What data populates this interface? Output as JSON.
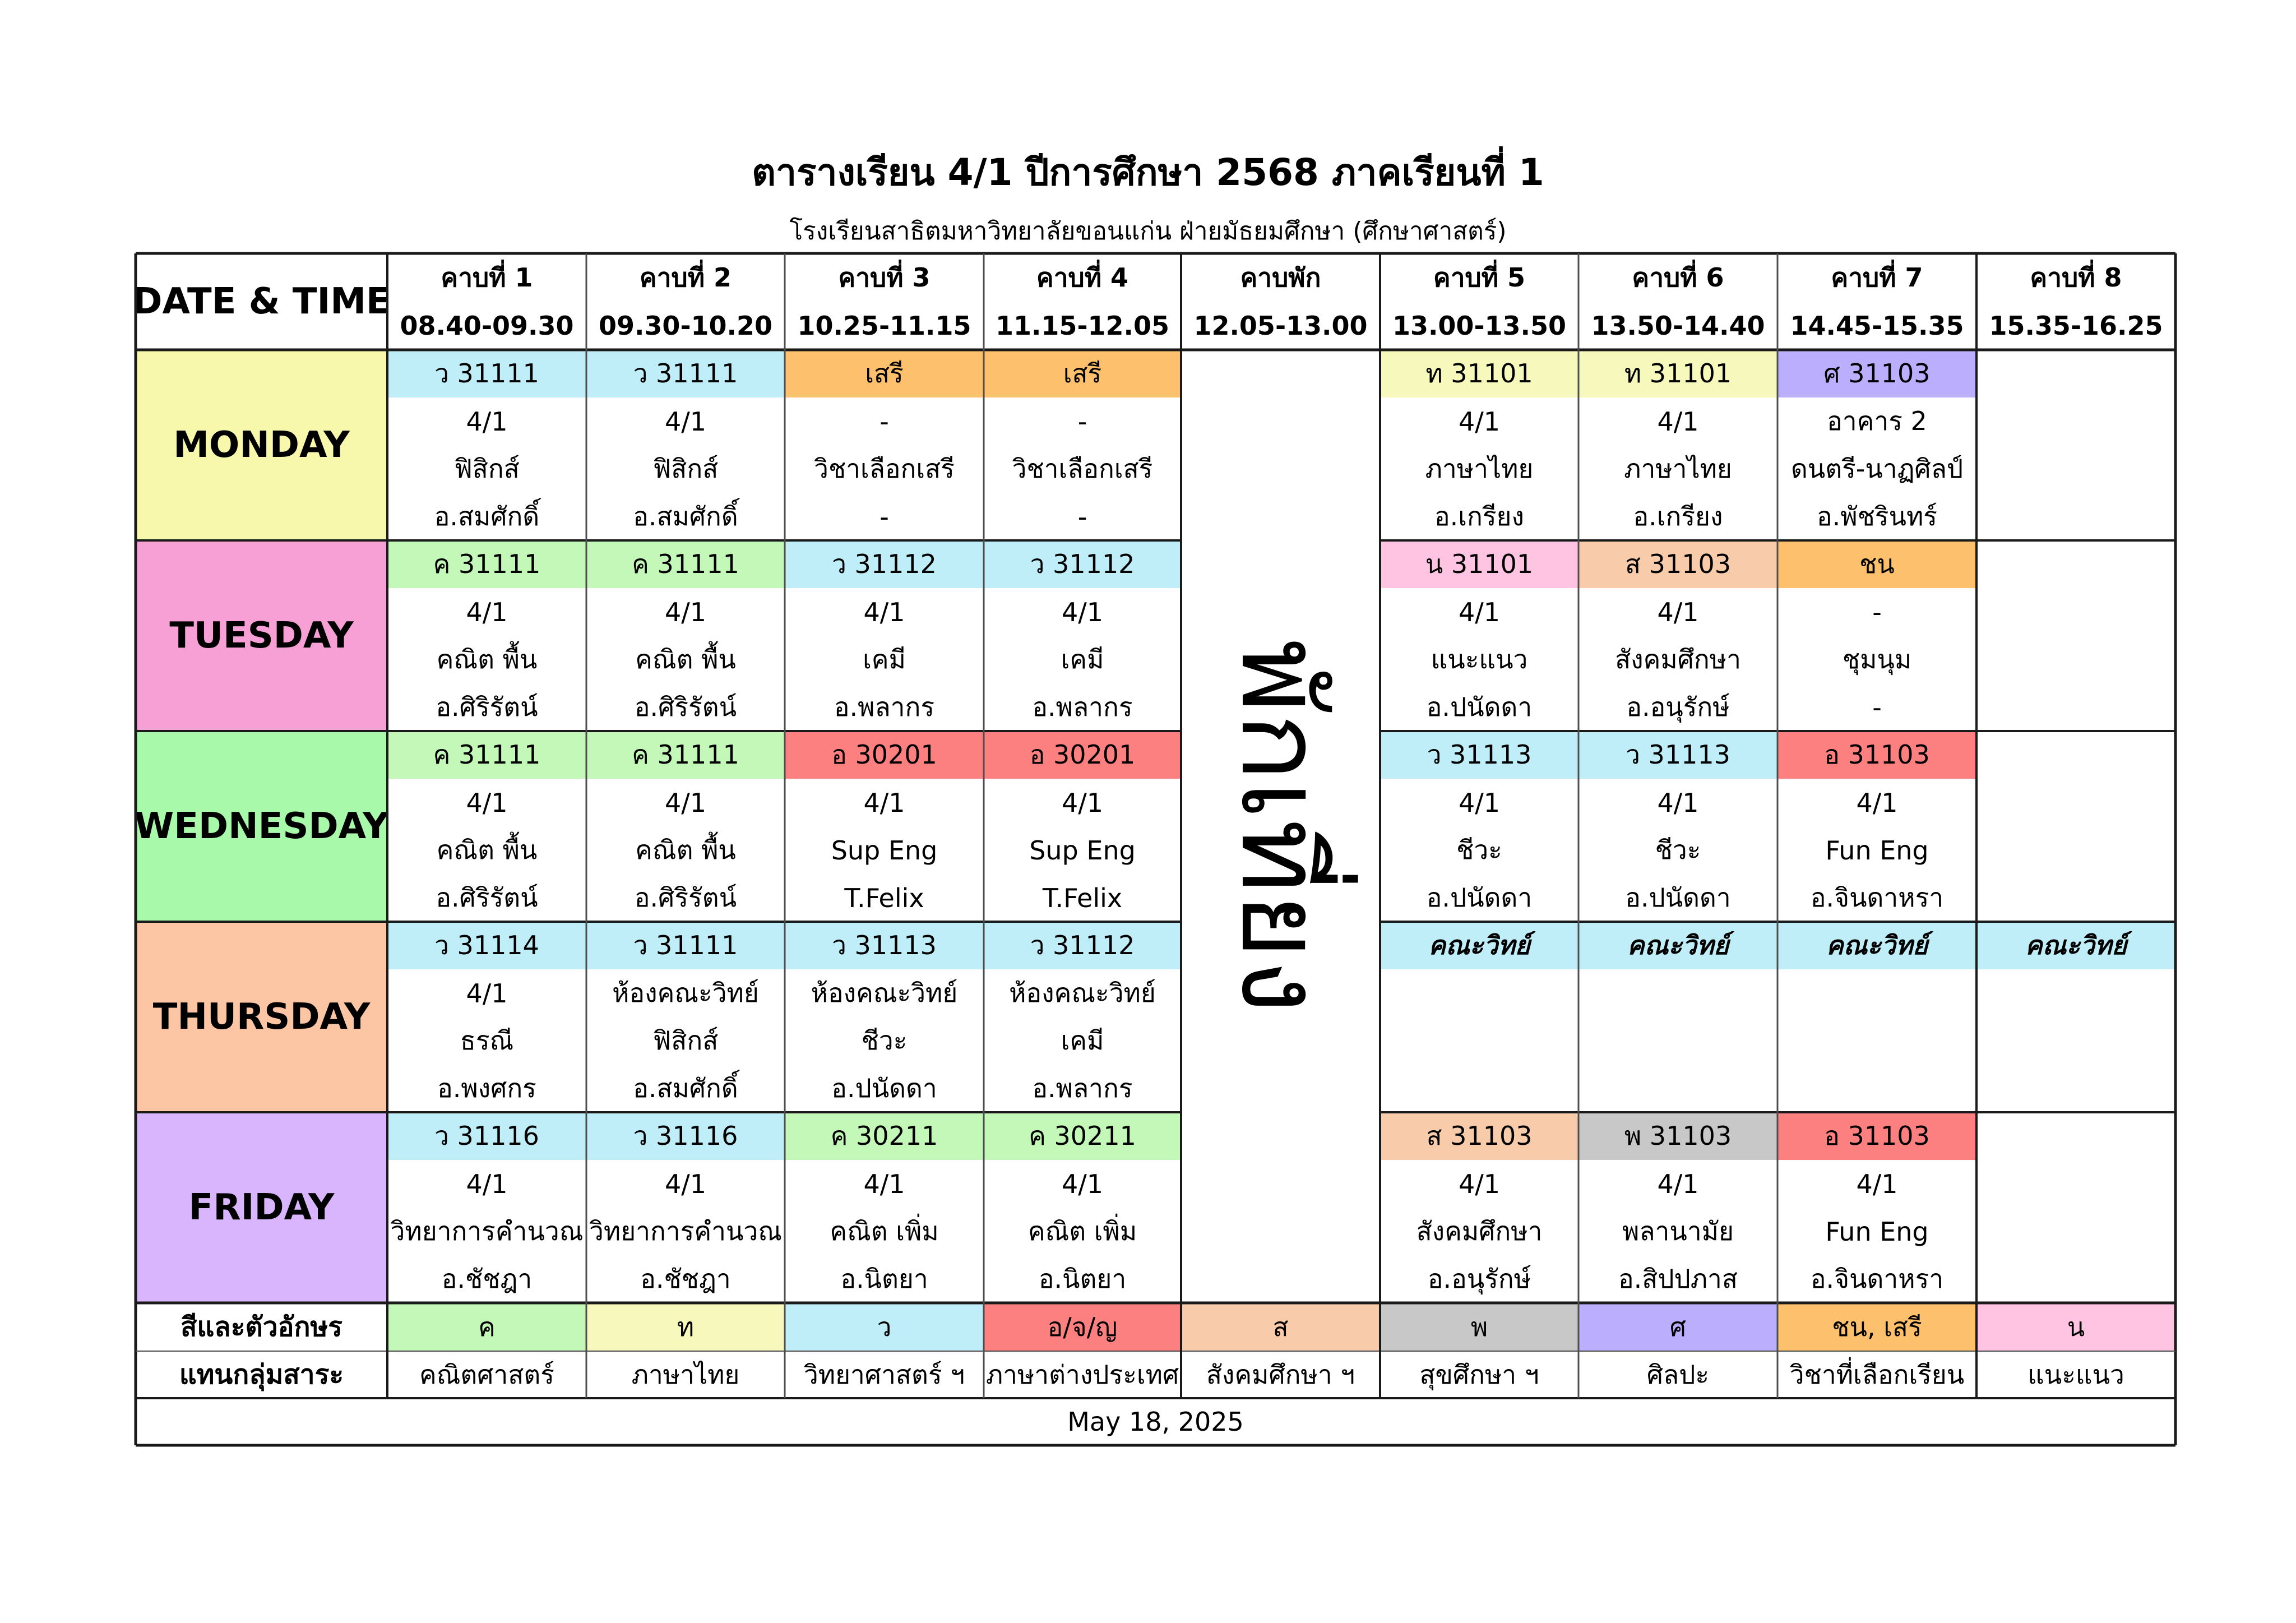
{
  "title": "ตารางเรียน 4/1 ปีการศึกษา 2568 ภาคเรียนที่ 1",
  "subtitle": "โรงเรียนสาธิตมหาวิทยาลัยขอนแก่น ฝ่ายมัธยมศึกษา (ศึกษาศาสตร์)",
  "header": {
    "date_time": "DATE & TIME",
    "periods": [
      {
        "label": "คาบที่ 1",
        "time": "08.40-09.30"
      },
      {
        "label": "คาบที่ 2",
        "time": "09.30-10.20"
      },
      {
        "label": "คาบที่ 3",
        "time": "10.25-11.15"
      },
      {
        "label": "คาบที่ 4",
        "time": "11.15-12.05"
      },
      {
        "label": "คาบพัก",
        "time": "12.05-13.00"
      },
      {
        "label": "คาบที่ 5",
        "time": "13.00-13.50"
      },
      {
        "label": "คาบที่ 6",
        "time": "13.50-14.40"
      },
      {
        "label": "คาบที่ 7",
        "time": "14.45-15.35"
      },
      {
        "label": "คาบที่ 8",
        "time": "15.35-16.25"
      }
    ]
  },
  "lunch_label": "พักเที่ยง",
  "days": [
    {
      "name": "MONDAY",
      "color": "#f8f8ac",
      "slots": [
        {
          "code": "ว 31111",
          "color": "#bfeef9",
          "lines": [
            "4/1",
            "ฟิสิกส์",
            "อ.สมศักดิ์"
          ]
        },
        {
          "code": "ว 31111",
          "color": "#bfeef9",
          "lines": [
            "4/1",
            "ฟิสิกส์",
            "อ.สมศักดิ์"
          ]
        },
        {
          "code": "เสรี",
          "color": "#fdc06c",
          "lines": [
            "-",
            "วิชาเลือกเสรี",
            "-"
          ]
        },
        {
          "code": "เสรี",
          "color": "#fdc06c",
          "lines": [
            "-",
            "วิชาเลือกเสรี",
            "-"
          ]
        },
        {
          "code": "ท 31101",
          "color": "#f6f8bc",
          "lines": [
            "4/1",
            "ภาษาไทย",
            "อ.เกรียง"
          ]
        },
        {
          "code": "ท 31101",
          "color": "#f6f8bc",
          "lines": [
            "4/1",
            "ภาษาไทย",
            "อ.เกรียง"
          ]
        },
        {
          "code": "ศ 31103",
          "color": "#bbaefc",
          "lines": [
            "อาคาร 2",
            "ดนตรี-นาฏศิลป์",
            "อ.พัชรินทร์"
          ]
        },
        {
          "code": "",
          "color": "#ffffff",
          "lines": [
            "",
            "",
            ""
          ]
        }
      ]
    },
    {
      "name": "TUESDAY",
      "color": "#f6a0d6",
      "slots": [
        {
          "code": "ค 31111",
          "color": "#c3f8b8",
          "lines": [
            "4/1",
            "คณิต พื้น",
            "อ.ศิริรัตน์"
          ]
        },
        {
          "code": "ค 31111",
          "color": "#c3f8b8",
          "lines": [
            "4/1",
            "คณิต พื้น",
            "อ.ศิริรัตน์"
          ]
        },
        {
          "code": "ว 31112",
          "color": "#bfeef9",
          "lines": [
            "4/1",
            "เคมี",
            "อ.พลากร"
          ]
        },
        {
          "code": "ว 31112",
          "color": "#bfeef9",
          "lines": [
            "4/1",
            "เคมี",
            "อ.พลากร"
          ]
        },
        {
          "code": "น 31101",
          "color": "#fec4e2",
          "lines": [
            "4/1",
            "แนะแนว",
            "อ.ปนัดดา"
          ]
        },
        {
          "code": "ส 31103",
          "color": "#f8cbaa",
          "lines": [
            "4/1",
            "สังคมศึกษา",
            "อ.อนุรักษ์"
          ]
        },
        {
          "code": "ชน",
          "color": "#fdc06c",
          "lines": [
            "-",
            "ชุมนุม",
            "-"
          ]
        },
        {
          "code": "",
          "color": "#ffffff",
          "lines": [
            "",
            "",
            ""
          ]
        }
      ]
    },
    {
      "name": "WEDNESDAY",
      "color": "#a9f9aa",
      "slots": [
        {
          "code": "ค 31111",
          "color": "#c3f8b8",
          "lines": [
            "4/1",
            "คณิต พื้น",
            "อ.ศิริรัตน์"
          ]
        },
        {
          "code": "ค 31111",
          "color": "#c3f8b8",
          "lines": [
            "4/1",
            "คณิต พื้น",
            "อ.ศิริรัตน์"
          ]
        },
        {
          "code": "อ 30201",
          "color": "#fd8080",
          "lines": [
            "4/1",
            "Sup Eng",
            "T.Felix"
          ]
        },
        {
          "code": "อ 30201",
          "color": "#fd8080",
          "lines": [
            "4/1",
            "Sup Eng",
            "T.Felix"
          ]
        },
        {
          "code": "ว 31113",
          "color": "#bfeef9",
          "lines": [
            "4/1",
            "ชีวะ",
            "อ.ปนัดดา"
          ]
        },
        {
          "code": "ว 31113",
          "color": "#bfeef9",
          "lines": [
            "4/1",
            "ชีวะ",
            "อ.ปนัดดา"
          ]
        },
        {
          "code": "อ 31103",
          "color": "#fd8080",
          "lines": [
            "4/1",
            "Fun Eng",
            "อ.จินดาหรา"
          ]
        },
        {
          "code": "",
          "color": "#ffffff",
          "lines": [
            "",
            "",
            ""
          ]
        }
      ]
    },
    {
      "name": "THURSDAY",
      "color": "#fcc6a4",
      "slots": [
        {
          "code": "ว 31114",
          "color": "#bfeef9",
          "lines": [
            "4/1",
            "ธรณี",
            "อ.พงศกร"
          ]
        },
        {
          "code": "ว 31111",
          "color": "#bfeef9",
          "lines": [
            "ห้องคณะวิทย์",
            "ฟิสิกส์",
            "อ.สมศักดิ์"
          ]
        },
        {
          "code": "ว 31113",
          "color": "#bfeef9",
          "lines": [
            "ห้องคณะวิทย์",
            "ชีวะ",
            "อ.ปนัดดา"
          ]
        },
        {
          "code": "ว 31112",
          "color": "#bfeef9",
          "lines": [
            "ห้องคณะวิทย์",
            "เคมี",
            "อ.พลากร"
          ]
        },
        {
          "code": "คณะวิทย์",
          "color": "#bfeef9",
          "italic": true,
          "lines": [
            "",
            "",
            ""
          ]
        },
        {
          "code": "คณะวิทย์",
          "color": "#bfeef9",
          "italic": true,
          "lines": [
            "",
            "",
            ""
          ]
        },
        {
          "code": "คณะวิทย์",
          "color": "#bfeef9",
          "italic": true,
          "lines": [
            "",
            "",
            ""
          ]
        },
        {
          "code": "คณะวิทย์",
          "color": "#bfeef9",
          "italic": true,
          "lines": [
            "",
            "",
            ""
          ]
        }
      ]
    },
    {
      "name": "FRIDAY",
      "color": "#d8b5fc",
      "slots": [
        {
          "code": "ว 31116",
          "color": "#bfeef9",
          "lines": [
            "4/1",
            "วิทยาการคำนวณ",
            "อ.ชัชฎา"
          ]
        },
        {
          "code": "ว 31116",
          "color": "#bfeef9",
          "lines": [
            "4/1",
            "วิทยาการคำนวณ",
            "อ.ชัชฎา"
          ]
        },
        {
          "code": "ค 30211",
          "color": "#c3f8b8",
          "lines": [
            "4/1",
            "คณิต เพิ่ม",
            "อ.นิตยา"
          ]
        },
        {
          "code": "ค 30211",
          "color": "#c3f8b8",
          "lines": [
            "4/1",
            "คณิต เพิ่ม",
            "อ.นิตยา"
          ]
        },
        {
          "code": "ส 31103",
          "color": "#f8cbaa",
          "lines": [
            "4/1",
            "สังคมศึกษา",
            "อ.อนุรักษ์"
          ]
        },
        {
          "code": "พ 31103",
          "color": "#c8c8c8",
          "lines": [
            "4/1",
            "พลานามัย",
            "อ.สิปปภาส"
          ]
        },
        {
          "code": "อ 31103",
          "color": "#fd8080",
          "lines": [
            "4/1",
            "Fun Eng",
            "อ.จินดาหรา"
          ]
        },
        {
          "code": "",
          "color": "#ffffff",
          "lines": [
            "",
            "",
            ""
          ]
        }
      ]
    }
  ],
  "legend": {
    "heading_line1": "สีและตัวอักษร",
    "heading_line2": "แทนกลุ่มสาระ",
    "items": [
      {
        "code": "ค",
        "name": "คณิตศาสตร์",
        "color": "#c3f8b8"
      },
      {
        "code": "ท",
        "name": "ภาษาไทย",
        "color": "#f6f8bc"
      },
      {
        "code": "ว",
        "name": "วิทยาศาสตร์ ฯ",
        "color": "#bfeef9"
      },
      {
        "code": "อ/จ/ญ",
        "name": "ภาษาต่างประเทศ",
        "color": "#fd8080"
      },
      {
        "code": "ส",
        "name": "สังคมศึกษา ฯ",
        "color": "#f8cbaa"
      },
      {
        "code": "พ",
        "name": "สุขศึกษา ฯ",
        "color": "#c8c8c8"
      },
      {
        "code": "ศ",
        "name": "ศิลปะ",
        "color": "#bbaefc"
      },
      {
        "code": "ชน, เสรี",
        "name": "วิชาที่เลือกเรียน",
        "color": "#fdc06c"
      },
      {
        "code": "น",
        "name": "แนะแนว",
        "color": "#fec4e2"
      }
    ]
  },
  "footer_date": "May 18, 2025"
}
